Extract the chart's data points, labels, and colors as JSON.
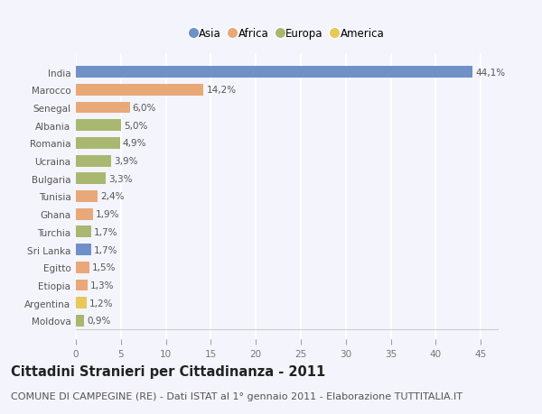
{
  "countries": [
    "India",
    "Marocco",
    "Senegal",
    "Albania",
    "Romania",
    "Ucraina",
    "Bulgaria",
    "Tunisia",
    "Ghana",
    "Turchia",
    "Sri Lanka",
    "Egitto",
    "Etiopia",
    "Argentina",
    "Moldova"
  ],
  "values": [
    44.1,
    14.2,
    6.0,
    5.0,
    4.9,
    3.9,
    3.3,
    2.4,
    1.9,
    1.7,
    1.7,
    1.5,
    1.3,
    1.2,
    0.9
  ],
  "labels": [
    "44,1%",
    "14,2%",
    "6,0%",
    "5,0%",
    "4,9%",
    "3,9%",
    "3,3%",
    "2,4%",
    "1,9%",
    "1,7%",
    "1,7%",
    "1,5%",
    "1,3%",
    "1,2%",
    "0,9%"
  ],
  "continents": [
    "Asia",
    "Africa",
    "Africa",
    "Europa",
    "Europa",
    "Europa",
    "Europa",
    "Africa",
    "Africa",
    "Europa",
    "Asia",
    "Africa",
    "Africa",
    "America",
    "Europa"
  ],
  "colors": {
    "Asia": "#7090c8",
    "Africa": "#e8a878",
    "Europa": "#a8b870",
    "America": "#e8c858"
  },
  "xlim": [
    0,
    47
  ],
  "xticks": [
    0,
    5,
    10,
    15,
    20,
    25,
    30,
    35,
    40,
    45
  ],
  "title": "Cittadini Stranieri per Cittadinanza - 2011",
  "subtitle": "COMUNE DI CAMPEGINE (RE) - Dati ISTAT al 1° gennaio 2011 - Elaborazione TUTTITALIA.IT",
  "bg_color": "#f4f4fc",
  "plot_bg_color": "#f4f4fc",
  "grid_color": "#ffffff",
  "bar_height": 0.65,
  "title_fontsize": 10.5,
  "subtitle_fontsize": 8,
  "label_fontsize": 7.5,
  "tick_fontsize": 7.5,
  "legend_fontsize": 8.5,
  "legend_entries": [
    "Asia",
    "Africa",
    "Europa",
    "America"
  ]
}
